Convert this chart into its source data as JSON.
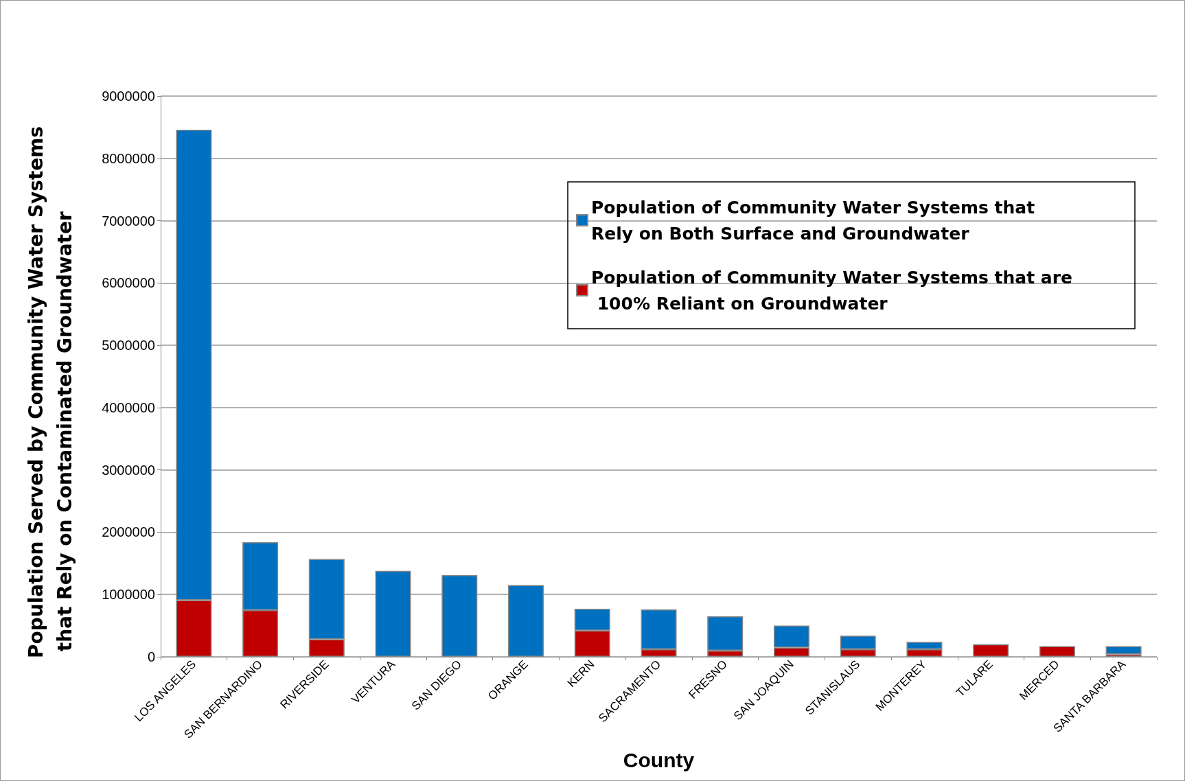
{
  "chart_data": {
    "type": "bar",
    "xlabel": "County",
    "ylabel": "Population Served by Community Water Systems that Rely on Contaminated Groundwater",
    "categories": [
      "LOS ANGELES",
      "SAN BERNARDINO",
      "RIVERSIDE",
      "VENTURA",
      "SAN DIEGO",
      "ORANGE",
      "KERN",
      "SACRAMENTO",
      "FRESNO",
      "SAN JOAQUIN",
      "STANISLAUS",
      "MONTEREY",
      "TULARE",
      "MERCED",
      "SANTA BARBARA"
    ],
    "stacked": true,
    "series": [
      {
        "name": "Population of Community Water Systems that are 100% Reliant on Groundwater",
        "color": "#c00000",
        "values": [
          910000,
          750000,
          280000,
          0,
          0,
          0,
          420000,
          120000,
          100000,
          150000,
          120000,
          120000,
          200000,
          170000,
          40000
        ]
      },
      {
        "name": "Population of Community Water Systems that Rely on Both Surface and Groundwater",
        "color": "#0070c0",
        "values": [
          7550000,
          1090000,
          1290000,
          1380000,
          1310000,
          1150000,
          350000,
          640000,
          550000,
          350000,
          220000,
          120000,
          0,
          0,
          130000
        ]
      }
    ],
    "ylim": [
      0,
      9000000
    ],
    "yticks": [
      0,
      1000000,
      2000000,
      3000000,
      4000000,
      5000000,
      6000000,
      7000000,
      8000000,
      9000000
    ],
    "grid": "y",
    "legend": "top right"
  }
}
